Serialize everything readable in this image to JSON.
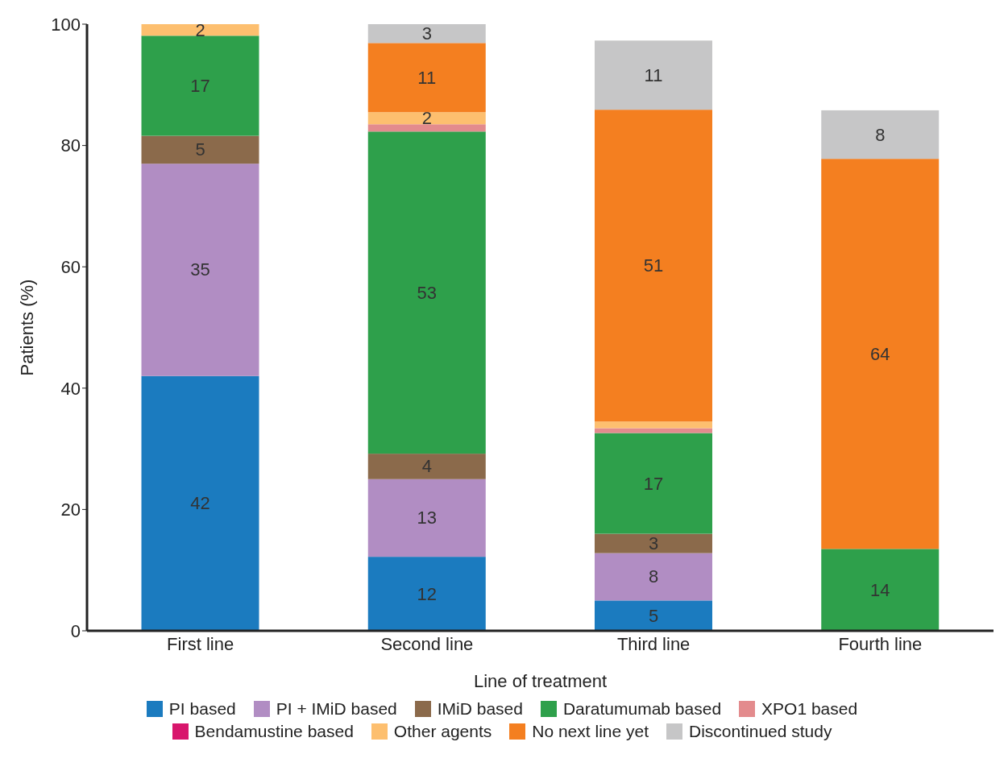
{
  "chart_data": {
    "type": "bar",
    "stacked": true,
    "xlabel": "Line of treatment",
    "ylabel": "Patients (%)",
    "categories": [
      "First line",
      "Second line",
      "Third line",
      "Fourth line"
    ],
    "ylim": [
      0,
      100
    ],
    "yticks": [
      0,
      20,
      40,
      60,
      80,
      100
    ],
    "grid": false,
    "legend": "bottom",
    "series": [
      {
        "name": "PI based",
        "color": "#1b7bbf",
        "values": [
          42,
          12.2,
          5,
          null
        ],
        "value_labels": [
          "42",
          "12",
          "5",
          null
        ]
      },
      {
        "name": "PI + IMiD based",
        "color": "#b18dc3",
        "values": [
          35,
          12.8,
          7.8,
          null
        ],
        "value_labels": [
          "35",
          "13",
          "8",
          null
        ]
      },
      {
        "name": "IMiD based",
        "color": "#8b6a4b",
        "values": [
          4.6,
          4.2,
          3.2,
          null
        ],
        "value_labels": [
          "5",
          "4",
          "3",
          null
        ]
      },
      {
        "name": "Daratumumab based",
        "color": "#2ea04b",
        "values": [
          16.5,
          53.1,
          16.6,
          13.5
        ],
        "value_labels": [
          "17",
          "53",
          "17",
          "14"
        ]
      },
      {
        "name": "XPO1 based",
        "color": "#e38b8d",
        "values": [
          null,
          1.2,
          0.8,
          null
        ],
        "value_labels": [
          null,
          null,
          null,
          null
        ]
      },
      {
        "name": "Bendamustine based",
        "color": "#d8166c",
        "values": [
          null,
          null,
          null,
          null
        ],
        "value_labels": [
          null,
          null,
          null,
          null
        ]
      },
      {
        "name": "Other agents",
        "color": "#fdbf6f",
        "values": [
          1.9,
          2,
          1.1,
          null
        ],
        "value_labels": [
          "2",
          "2",
          null,
          null
        ]
      },
      {
        "name": "No next line yet",
        "color": "#f47f20",
        "values": [
          null,
          11.4,
          51.4,
          64.3
        ],
        "value_labels": [
          null,
          "11",
          "51",
          "64"
        ]
      },
      {
        "name": "Discontinued study",
        "color": "#c6c6c7",
        "values": [
          null,
          3.1,
          11.4,
          8
        ],
        "value_labels": [
          null,
          "3",
          "11",
          "8"
        ]
      }
    ]
  }
}
